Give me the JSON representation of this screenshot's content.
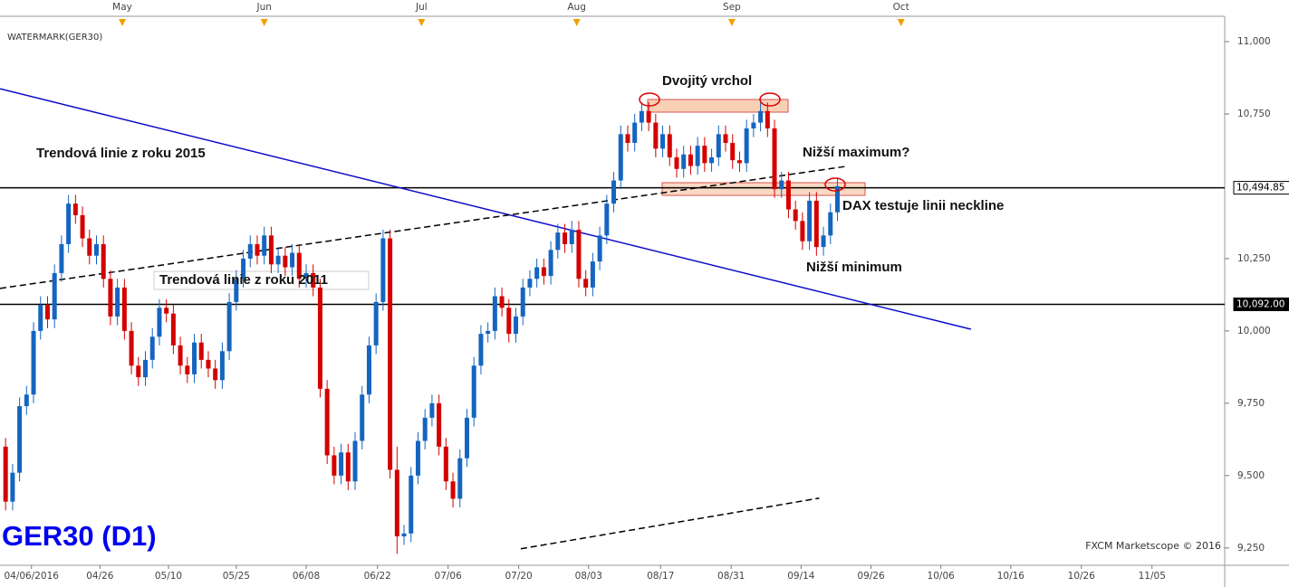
{
  "chart_data": {
    "type": "candlestick",
    "watermark": "WATERMARK(GER30)",
    "title": "GER30 (D1)",
    "credit": "FXCM Marketscope © 2016",
    "annotations": [
      "Trendová linie z roku 2015",
      "Trendová linie z roku 2011",
      "Dvojitý vrchol",
      "Nižší maximum?",
      "DAX testuje linii neckline",
      "Nižší minimum"
    ],
    "up_color": "#1565c0",
    "down_color": "#d40000",
    "ylim": [
      9190,
      11050
    ],
    "yticks": [
      {
        "value": 9250,
        "label": "9,250"
      },
      {
        "value": 9500,
        "label": "9,500"
      },
      {
        "value": 9750,
        "label": "9,750"
      },
      {
        "value": 10000,
        "label": "10,000"
      },
      {
        "value": 10250,
        "label": "10,250"
      },
      {
        "value": 10750,
        "label": "10,750"
      },
      {
        "value": 11000,
        "label": "11,000"
      }
    ],
    "xlim": [
      -0.8,
      174.4
    ],
    "xticks": [
      {
        "value": 3.7,
        "label": "04/06/2016"
      },
      {
        "value": 13.5,
        "label": "04/26"
      },
      {
        "value": 23.3,
        "label": "05/10"
      },
      {
        "value": 33,
        "label": "05/25"
      },
      {
        "value": 43,
        "label": "06/08"
      },
      {
        "value": 53.2,
        "label": "06/22"
      },
      {
        "value": 63.3,
        "label": "07/06"
      },
      {
        "value": 73.4,
        "label": "07/20"
      },
      {
        "value": 83.4,
        "label": "08/03"
      },
      {
        "value": 93.7,
        "label": "08/17"
      },
      {
        "value": 103.8,
        "label": "08/31"
      },
      {
        "value": 113.8,
        "label": "09/14"
      },
      {
        "value": 123.8,
        "label": "09/26"
      },
      {
        "value": 133.8,
        "label": "10/06"
      },
      {
        "value": 143.8,
        "label": "10/16"
      },
      {
        "value": 153.9,
        "label": "10/26"
      },
      {
        "value": 164,
        "label": "11/05"
      }
    ],
    "top_ticks": [
      {
        "value": 16.7,
        "label": "May"
      },
      {
        "value": 37,
        "label": "Jun"
      },
      {
        "value": 59.5,
        "label": "Jul"
      },
      {
        "value": 81.7,
        "label": "Aug"
      },
      {
        "value": 103.9,
        "label": "Sep"
      },
      {
        "value": 128.1,
        "label": "Oct"
      }
    ],
    "open": [
      9600,
      9410,
      9510,
      9740,
      9780,
      10000,
      10090,
      10040,
      10200,
      10300,
      10440,
      10400,
      10320,
      10260,
      10300,
      10180,
      10050,
      10150,
      10000,
      9880,
      9840,
      9900,
      9980,
      10080,
      10060,
      9950,
      9880,
      9850,
      9960,
      9900,
      9870,
      9830,
      9930,
      10100,
      10180,
      10250,
      10300,
      10260,
      10330,
      10230,
      10260,
      10220,
      10270,
      10180,
      10200,
      10150,
      9800,
      9570,
      9500,
      9580,
      9480,
      9620,
      9780,
      9950,
      10100,
      10320,
      9520,
      9290,
      9300,
      9500,
      9620,
      9700,
      9750,
      9600,
      9480,
      9420,
      9560,
      9700,
      9880,
      9990,
      10000,
      10120,
      10080,
      9990,
      10050,
      10150,
      10180,
      10220,
      10190,
      10280,
      10340,
      10300,
      10350,
      10180,
      10150,
      10240,
      10330,
      10440,
      10520,
      10680,
      10650,
      10720,
      10760,
      10720,
      10630,
      10680,
      10600,
      10560,
      10610,
      10570,
      10640,
      10580,
      10600,
      10680,
      10650,
      10590,
      10580,
      10700,
      10720,
      10760,
      10700,
      10490,
      10520,
      10420,
      10380,
      10310,
      10450,
      10290,
      10330,
      10410
    ],
    "high": [
      9630,
      9540,
      9770,
      9810,
      10030,
      10120,
      10120,
      10230,
      10330,
      10470,
      10470,
      10430,
      10350,
      10330,
      10330,
      10210,
      10180,
      10180,
      10030,
      9910,
      9930,
      10010,
      10110,
      10110,
      10090,
      9980,
      9910,
      9990,
      9990,
      9930,
      9900,
      9960,
      10130,
      10210,
      10280,
      10330,
      10330,
      10360,
      10360,
      10290,
      10290,
      10300,
      10300,
      10230,
      10230,
      10180,
      9830,
      9600,
      9610,
      9610,
      9650,
      9810,
      9980,
      10130,
      10350,
      10350,
      9600,
      9330,
      9530,
      9650,
      9730,
      9780,
      9780,
      9630,
      9510,
      9590,
      9730,
      9910,
      10020,
      10030,
      10150,
      10150,
      10110,
      10080,
      10180,
      10210,
      10250,
      10250,
      10310,
      10370,
      10370,
      10380,
      10380,
      10210,
      10270,
      10360,
      10470,
      10550,
      10710,
      10710,
      10750,
      10790,
      10790,
      10750,
      10710,
      10710,
      10630,
      10640,
      10640,
      10670,
      10670,
      10630,
      10710,
      10710,
      10680,
      10620,
      10730,
      10750,
      10790,
      10790,
      10730,
      10550,
      10550,
      10450,
      10410,
      10480,
      10480,
      10360,
      10440,
      10530
    ],
    "low": [
      9380,
      9380,
      9480,
      9710,
      9750,
      9970,
      10010,
      10010,
      10170,
      10270,
      10370,
      10290,
      10230,
      10230,
      10150,
      10020,
      10020,
      9970,
      9850,
      9810,
      9810,
      9870,
      9950,
      10030,
      9920,
      9850,
      9820,
      9820,
      9870,
      9840,
      9800,
      9800,
      9900,
      10070,
      10150,
      10220,
      10230,
      10230,
      10200,
      10200,
      10190,
      10190,
      10150,
      10150,
      10120,
      9770,
      9540,
      9470,
      9470,
      9450,
      9450,
      9590,
      9750,
      9920,
      10070,
      9490,
      9230,
      9260,
      9270,
      9470,
      9590,
      9670,
      9570,
      9450,
      9390,
      9390,
      9530,
      9670,
      9850,
      9960,
      9970,
      10050,
      9960,
      9960,
      10020,
      10120,
      10150,
      10160,
      10160,
      10250,
      10270,
      10270,
      10150,
      10120,
      10120,
      10210,
      10300,
      10410,
      10490,
      10620,
      10620,
      10690,
      10690,
      10600,
      10600,
      10570,
      10530,
      10530,
      10540,
      10540,
      10550,
      10550,
      10570,
      10620,
      10560,
      10550,
      10550,
      10670,
      10690,
      10670,
      10460,
      10460,
      10390,
      10350,
      10280,
      10280,
      10260,
      10260,
      10300,
      10380
    ],
    "close": [
      9410,
      9510,
      9740,
      9780,
      10000,
      10090,
      10040,
      10200,
      10300,
      10440,
      10400,
      10320,
      10260,
      10300,
      10180,
      10050,
      10150,
      10000,
      9880,
      9840,
      9900,
      9980,
      10080,
      10060,
      9950,
      9880,
      9850,
      9960,
      9900,
      9870,
      9830,
      9930,
      10100,
      10180,
      10250,
      10300,
      10260,
      10330,
      10230,
      10260,
      10220,
      10270,
      10180,
      10200,
      10150,
      9800,
      9570,
      9500,
      9580,
      9480,
      9620,
      9780,
      9950,
      10100,
      10320,
      9520,
      9290,
      9300,
      9500,
      9620,
      9700,
      9750,
      9600,
      9480,
      9420,
      9560,
      9700,
      9880,
      9990,
      10000,
      10120,
      10080,
      9990,
      10050,
      10150,
      10180,
      10220,
      10190,
      10280,
      10340,
      10300,
      10350,
      10180,
      10150,
      10240,
      10330,
      10440,
      10520,
      10680,
      10650,
      10720,
      10760,
      10720,
      10630,
      10680,
      10600,
      10560,
      10610,
      10570,
      10640,
      10580,
      10600,
      10680,
      10650,
      10590,
      10580,
      10700,
      10720,
      10760,
      10700,
      10490,
      10520,
      10420,
      10380,
      10310,
      10450,
      10290,
      10330,
      10410,
      10500
    ],
    "hlines": [
      {
        "value": 10494.85,
        "label": "10,494.85"
      },
      {
        "value": 10092,
        "label": "10,092.00"
      }
    ],
    "trendlines": [
      {
        "x": [
          -0.8,
          138.1
        ],
        "y": [
          10837,
          10006
        ],
        "color": "#0a0ac8",
        "dashed": false
      },
      {
        "x": [
          -0.8,
          120.3
        ],
        "y": [
          10147,
          10569
        ],
        "color": "#000000",
        "dashed": true
      },
      {
        "x": [
          73.7,
          116.4
        ],
        "y": [
          9247,
          9422
        ],
        "color": "#000000",
        "dashed": true
      }
    ]
  }
}
